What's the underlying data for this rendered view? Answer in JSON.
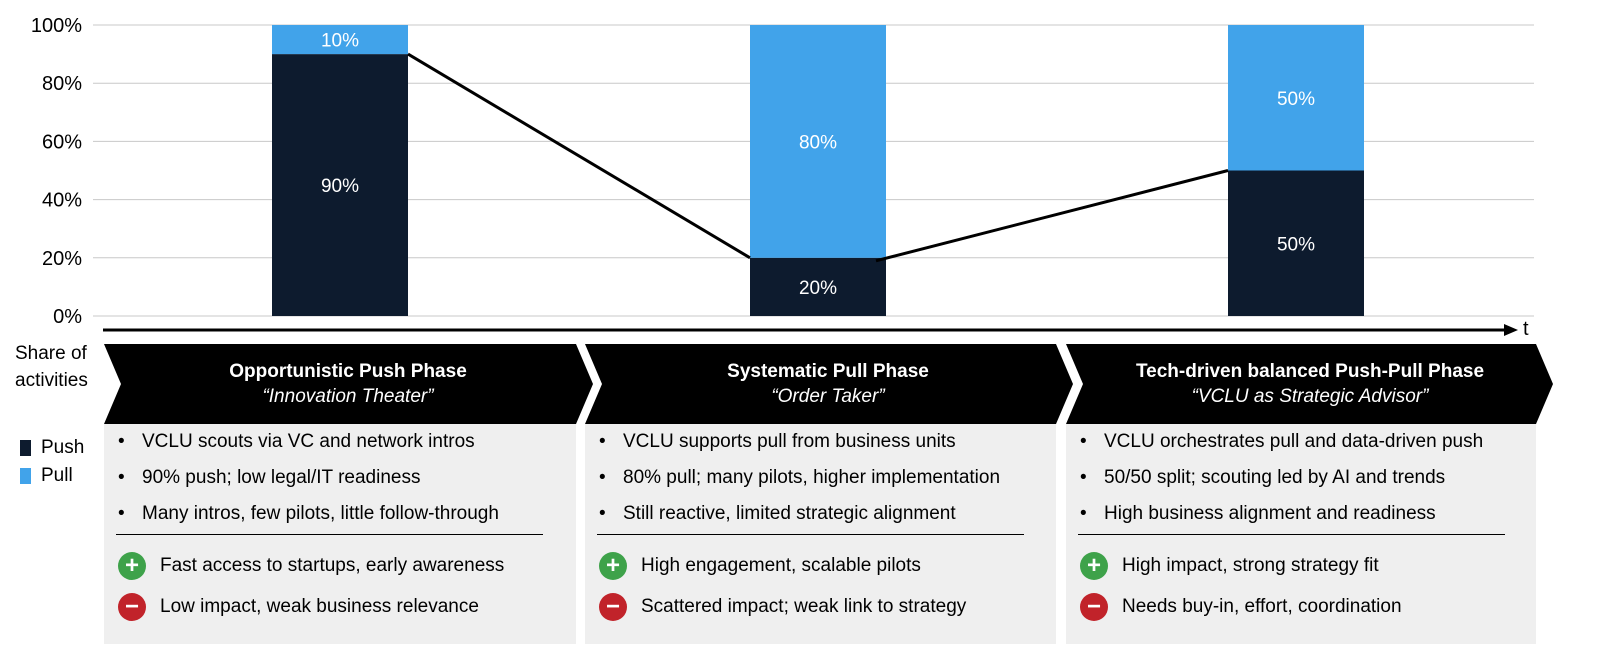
{
  "chart_data": {
    "type": "bar",
    "stacked": true,
    "categories": [
      "Opportunistic Push Phase",
      "Systematic Pull Phase",
      "Tech-driven balanced Push-Pull Phase"
    ],
    "series": [
      {
        "name": "Push",
        "values": [
          90,
          20,
          50
        ],
        "labels": [
          "90%",
          "20%",
          "50%"
        ],
        "color": "#0d1b2e"
      },
      {
        "name": "Pull",
        "values": [
          10,
          80,
          50
        ],
        "labels": [
          "10%",
          "80%",
          "50%"
        ],
        "color": "#41a3ea"
      }
    ],
    "trend_line": "push share",
    "ylim": [
      0,
      100
    ],
    "yticks": [
      "0%",
      "20%",
      "40%",
      "60%",
      "80%",
      "100%"
    ],
    "ylabel": "Share of activities",
    "xlabel": "t",
    "grid": true,
    "legend_placement": "left"
  },
  "axis": {
    "ylabel_line1": "Share of",
    "ylabel_line2": "activities",
    "time_label": "t"
  },
  "legend": {
    "push": "Push",
    "pull": "Pull"
  },
  "phases": [
    {
      "title": "Opportunistic Push Phase",
      "subtitle": "“Innovation Theater”",
      "bullets": [
        "VCLU scouts via VC and network intros",
        "90% push; low legal/IT readiness",
        "Many intros, few pilots, little follow-through"
      ],
      "pro": "Fast access to startups, early awareness",
      "con": "Low impact, weak business relevance"
    },
    {
      "title": "Systematic Pull Phase",
      "subtitle": "“Order Taker”",
      "bullets": [
        "VCLU supports pull from business units",
        "80% pull; many pilots, higher implementation",
        "Still reactive, limited strategic alignment"
      ],
      "pro": "High engagement, scalable pilots",
      "con": "Scattered impact; weak link to strategy"
    },
    {
      "title": "Tech-driven balanced Push-Pull Phase",
      "subtitle": "“VCLU as Strategic Advisor”",
      "bullets": [
        "VCLU orchestrates pull and data-driven push",
        "50/50 split; scouting led by AI and trends",
        "High business alignment and readiness"
      ],
      "pro": "High impact, strong strategy fit",
      "con": "Needs buy-in, effort, coordination"
    }
  ]
}
